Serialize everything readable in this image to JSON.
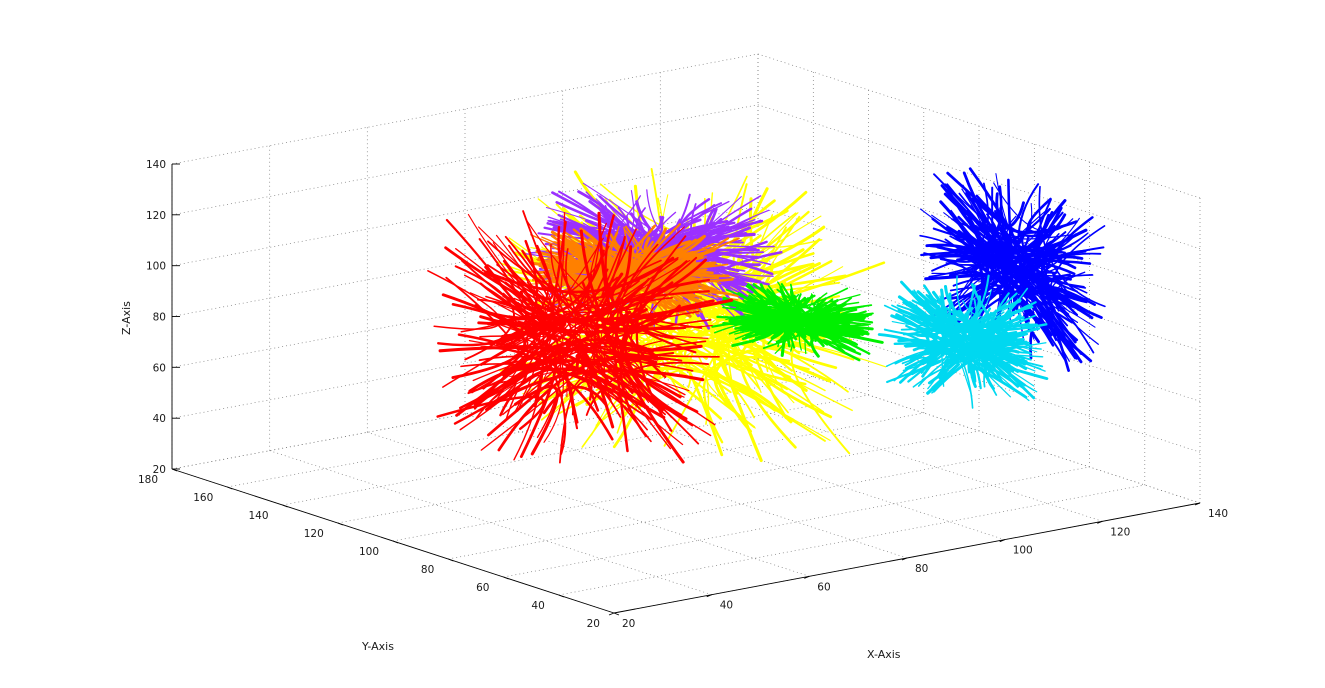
{
  "chart_data": {
    "type": "scatter",
    "subtype": "3d-fiber-tractography",
    "xlabel": "X-Axis",
    "ylabel": "Y-Axis",
    "zlabel": "Z-Axis",
    "xlim": [
      20,
      140
    ],
    "ylim": [
      20,
      180
    ],
    "zlim": [
      20,
      140
    ],
    "xticks": [
      20,
      40,
      60,
      80,
      100,
      120,
      140
    ],
    "yticks": [
      20,
      40,
      60,
      80,
      100,
      120,
      140,
      160,
      180
    ],
    "zticks": [
      20,
      40,
      60,
      80,
      100,
      120,
      140
    ],
    "grid": true,
    "bundles": [
      {
        "color": "#0000ff",
        "x": [
          112,
          128
        ],
        "y": [
          20,
          85
        ],
        "z": [
          78,
          140
        ]
      },
      {
        "color": "#00d8f0",
        "x": [
          108,
          132
        ],
        "y": [
          45,
          95
        ],
        "z": [
          55,
          92
        ]
      },
      {
        "color": "#ffff00",
        "x": [
          55,
          115
        ],
        "y": [
          55,
          160
        ],
        "z": [
          40,
          125
        ]
      },
      {
        "color": "#9b30ff",
        "x": [
          62,
          102
        ],
        "y": [
          80,
          150
        ],
        "z": [
          85,
          125
        ]
      },
      {
        "color": "#ff8000",
        "x": [
          62,
          98
        ],
        "y": [
          95,
          145
        ],
        "z": [
          82,
          110
        ]
      },
      {
        "color": "#00f000",
        "x": [
          88,
          112
        ],
        "y": [
          70,
          120
        ],
        "z": [
          72,
          88
        ]
      },
      {
        "color": "#ff0000",
        "x": [
          52,
          98
        ],
        "y": [
          90,
          170
        ],
        "z": [
          30,
          108
        ]
      }
    ]
  }
}
